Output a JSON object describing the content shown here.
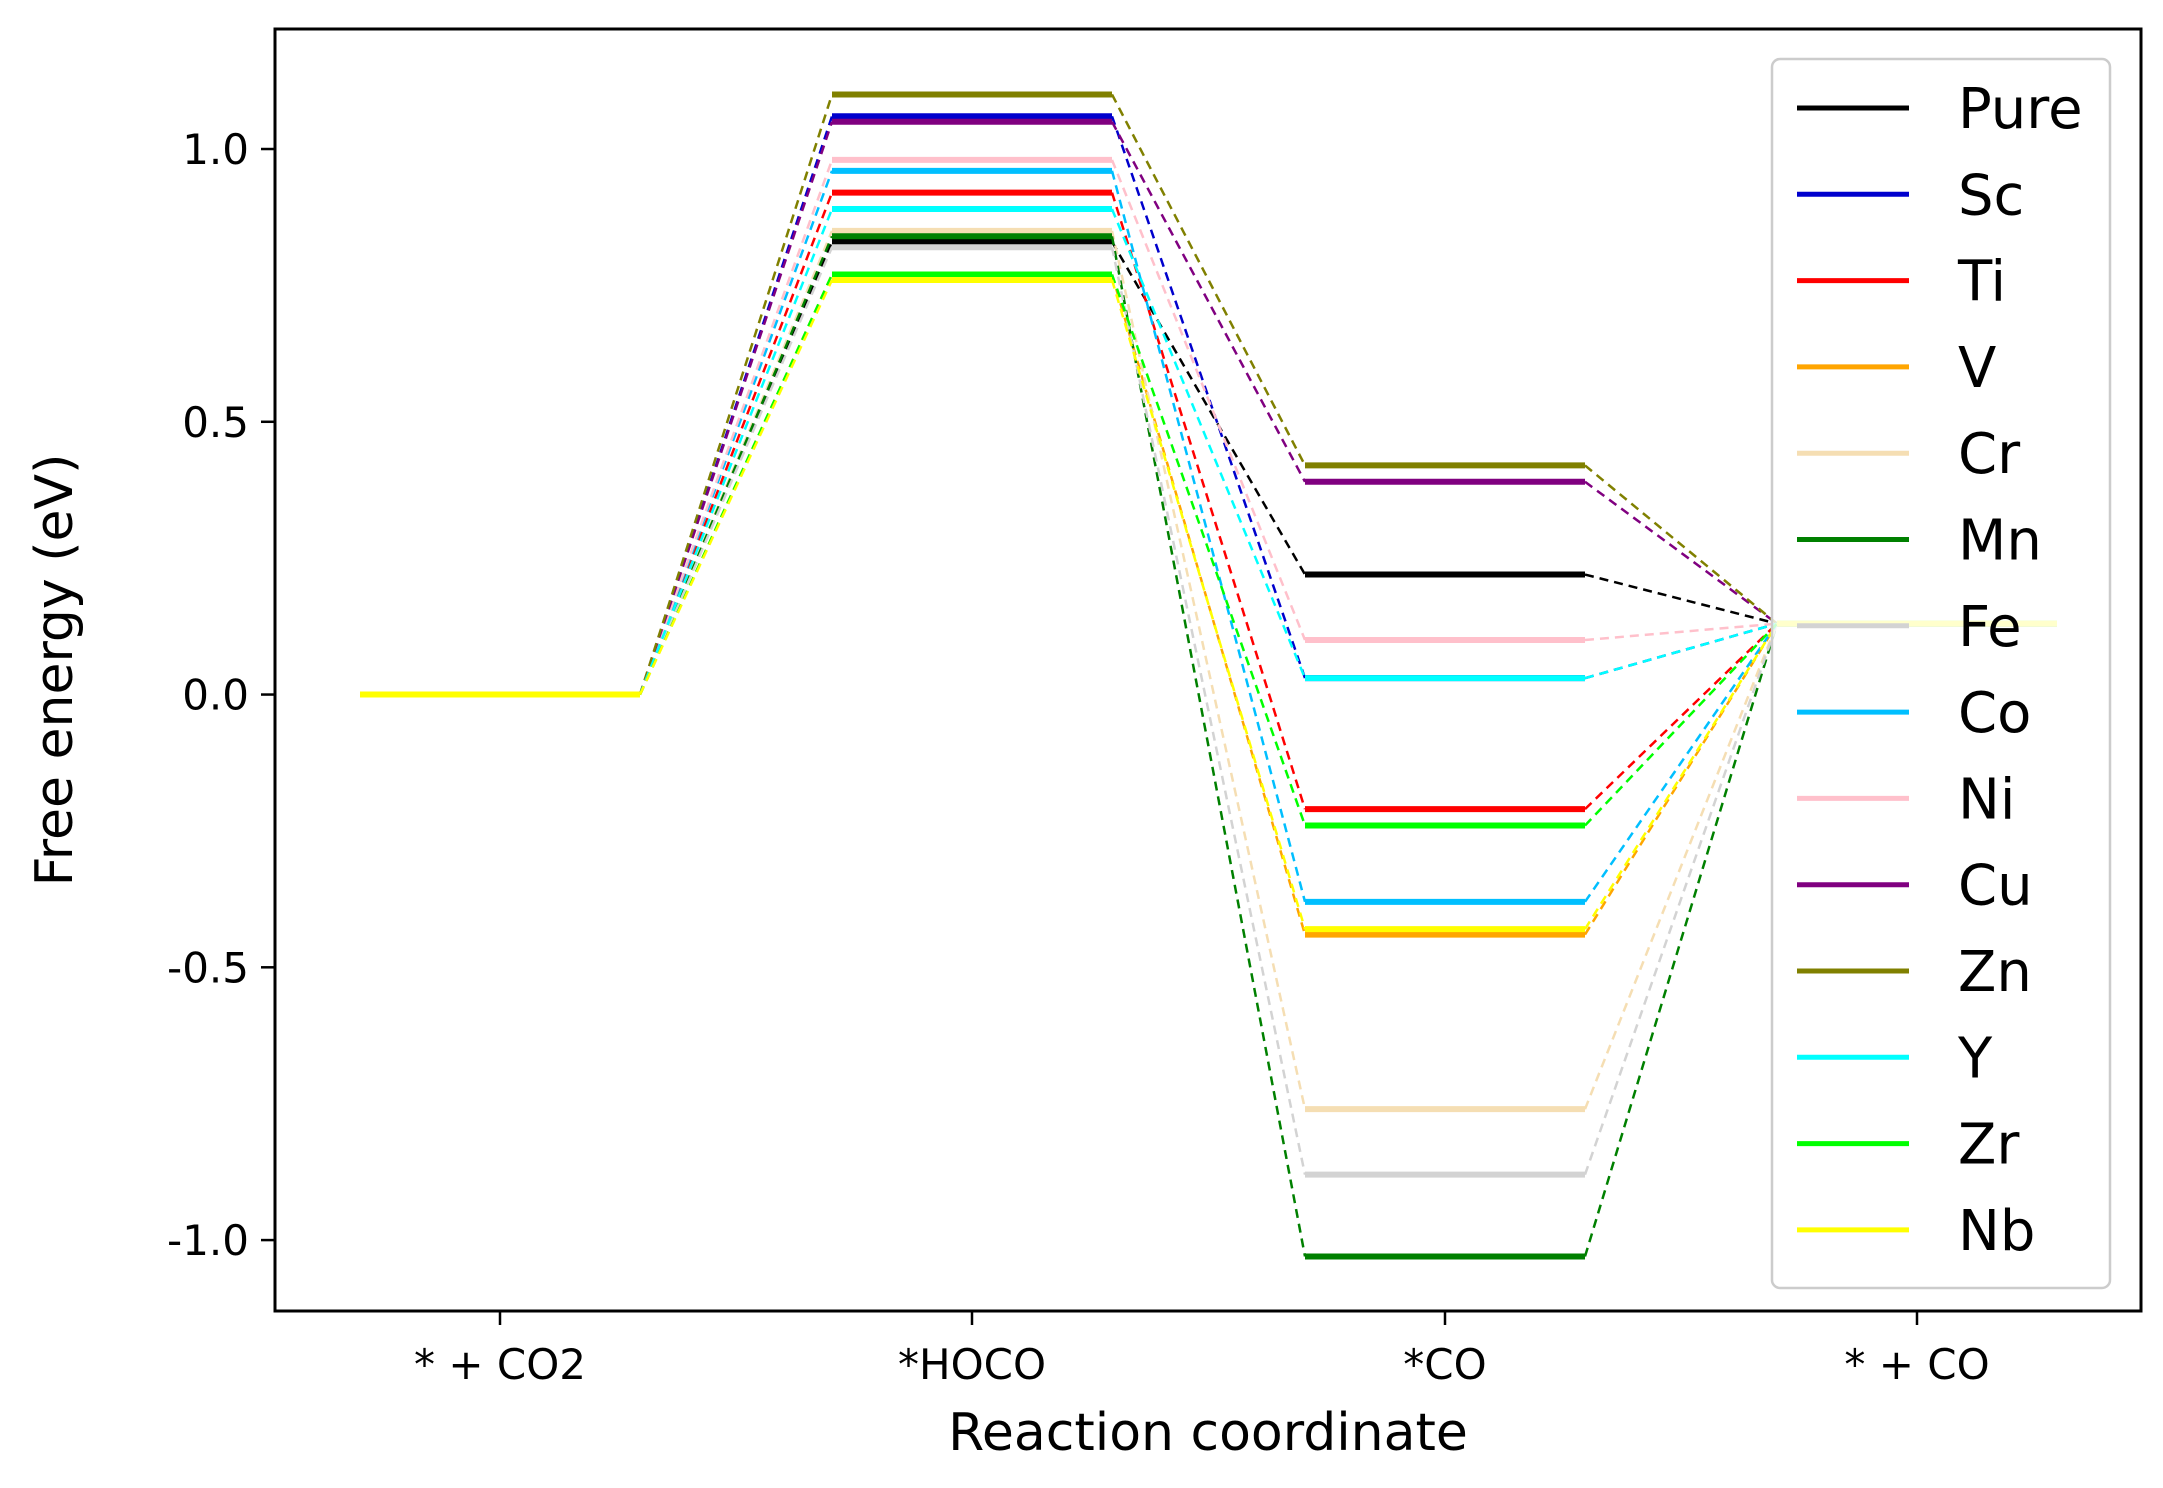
{
  "chart_data": {
    "type": "line",
    "xlabel": "Reaction coordinate",
    "ylabel": "Free energy (eV)",
    "categories": [
      "* + CO2",
      "*HOCO",
      "*CO",
      "* + CO"
    ],
    "ylim": [
      -1.13,
      1.22
    ],
    "yticks": [
      {
        "value": 1.0,
        "label": "1.0"
      },
      {
        "value": 0.5,
        "label": "0.5"
      },
      {
        "value": 0.0,
        "label": "0.0"
      },
      {
        "value": -0.5,
        "label": "-0.5"
      },
      {
        "value": -1.0,
        "label": "-1.0"
      }
    ],
    "grid": false,
    "legend_position": "upper-right",
    "series": [
      {
        "name": "Pure",
        "color": "#000000",
        "values": [
          0,
          0.83,
          0.22,
          0.13
        ]
      },
      {
        "name": "Sc",
        "color": "#0000cd",
        "values": [
          0,
          1.06,
          0.03,
          0.13
        ]
      },
      {
        "name": "Ti",
        "color": "#ff0000",
        "values": [
          0,
          0.92,
          -0.21,
          0.13
        ]
      },
      {
        "name": "V",
        "color": "#ffa500",
        "values": [
          0,
          0.77,
          -0.44,
          0.13
        ]
      },
      {
        "name": "Cr",
        "color": "#f5deb3",
        "values": [
          0,
          0.85,
          -0.76,
          0.13
        ]
      },
      {
        "name": "Mn",
        "color": "#008000",
        "values": [
          0,
          0.84,
          -1.03,
          0.13
        ]
      },
      {
        "name": "Fe",
        "color": "#d3d3d3",
        "values": [
          0,
          0.82,
          -0.88,
          0.13
        ]
      },
      {
        "name": "Co",
        "color": "#00bfff",
        "values": [
          0,
          0.96,
          -0.38,
          0.13
        ]
      },
      {
        "name": "Ni",
        "color": "#ffc0cb",
        "values": [
          0,
          0.98,
          0.1,
          0.13
        ]
      },
      {
        "name": "Cu",
        "color": "#800080",
        "values": [
          0,
          1.05,
          0.39,
          0.13
        ]
      },
      {
        "name": "Zn",
        "color": "#808000",
        "values": [
          0,
          1.1,
          0.42,
          0.13
        ]
      },
      {
        "name": "Y",
        "color": "#00ffff",
        "values": [
          0,
          0.89,
          0.03,
          0.13
        ]
      },
      {
        "name": "Zr",
        "color": "#00ff00",
        "values": [
          0,
          0.77,
          -0.24,
          0.13
        ]
      },
      {
        "name": "Nb",
        "color": "#ffff00",
        "values": [
          0,
          0.76,
          -0.43,
          0.13
        ]
      }
    ]
  }
}
